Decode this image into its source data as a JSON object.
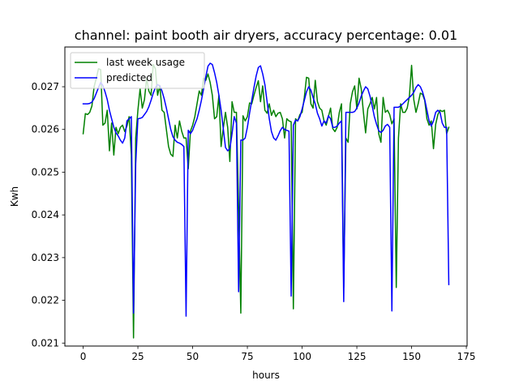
{
  "chart_data": {
    "type": "line",
    "title": "channel: paint booth air dryers, accuracy percentage: 0.01",
    "xlabel": "hours",
    "ylabel": "Kwh",
    "xlim": [
      -8.35,
      175.35
    ],
    "ylim": [
      0.02093,
      0.02793
    ],
    "xticks": [
      0,
      25,
      50,
      75,
      100,
      125,
      150,
      175
    ],
    "yticks": [
      0.021,
      0.022,
      0.023,
      0.024,
      0.025,
      0.026,
      0.027
    ],
    "ytick_labels": [
      "0.021",
      "0.022",
      "0.023",
      "0.024",
      "0.025",
      "0.026",
      "0.027"
    ],
    "grid": false,
    "legend_position": "upper left",
    "series": [
      {
        "name": "last week usage",
        "color": "#008000",
        "x": [
          0,
          1,
          2,
          3,
          4,
          5,
          6,
          7,
          8,
          9,
          10,
          11,
          12,
          13,
          14,
          15,
          16,
          17,
          18,
          19,
          20,
          21,
          22,
          23,
          24,
          25,
          26,
          27,
          28,
          29,
          30,
          31,
          32,
          33,
          34,
          35,
          36,
          37,
          38,
          39,
          40,
          41,
          42,
          43,
          44,
          45,
          46,
          47,
          48,
          49,
          50,
          51,
          52,
          53,
          54,
          55,
          56,
          57,
          58,
          59,
          60,
          61,
          62,
          63,
          64,
          65,
          66,
          67,
          68,
          69,
          70,
          71,
          72,
          73,
          74,
          75,
          76,
          77,
          78,
          79,
          80,
          81,
          82,
          83,
          84,
          85,
          86,
          87,
          88,
          89,
          90,
          91,
          92,
          93,
          94,
          95,
          96,
          97,
          98,
          99,
          100,
          101,
          102,
          103,
          104,
          105,
          106,
          107,
          108,
          109,
          110,
          111,
          112,
          113,
          114,
          115,
          116,
          117,
          118,
          119,
          120,
          121,
          122,
          123,
          124,
          125,
          126,
          127,
          128,
          129,
          130,
          131,
          132,
          133,
          134,
          135,
          136,
          137,
          138,
          139,
          140,
          141,
          142,
          143,
          144,
          145,
          146,
          147,
          148,
          149,
          150,
          151,
          152,
          153,
          154,
          155,
          156,
          157,
          158,
          159,
          160,
          161,
          162,
          163,
          164,
          165,
          166,
          167
        ],
        "y": [
          0.0259,
          0.02637,
          0.02635,
          0.0264,
          0.02655,
          0.027,
          0.0272,
          0.02742,
          0.0274,
          0.0261,
          0.02615,
          0.02645,
          0.0255,
          0.02615,
          0.0254,
          0.02605,
          0.0259,
          0.02605,
          0.0261,
          0.02595,
          0.02608,
          0.0263,
          0.0254,
          0.02112,
          0.0258,
          0.02645,
          0.02695,
          0.0265,
          0.0267,
          0.0272,
          0.0269,
          0.0268,
          0.02752,
          0.02742,
          0.0268,
          0.02703,
          0.02645,
          0.0264,
          0.026,
          0.0256,
          0.02542,
          0.02537,
          0.0261,
          0.0258,
          0.0262,
          0.02596,
          0.0258,
          0.0258,
          0.02508,
          0.02596,
          0.0261,
          0.0263,
          0.0266,
          0.0269,
          0.0268,
          0.0272,
          0.02715,
          0.0273,
          0.0271,
          0.0268,
          0.02625,
          0.0263,
          0.0268,
          0.0256,
          0.02603,
          0.0264,
          0.02605,
          0.02525,
          0.02665,
          0.0264,
          0.0264,
          0.02418,
          0.0217,
          0.02632,
          0.0262,
          0.0263,
          0.02662,
          0.0266,
          0.0268,
          0.02698,
          0.02714,
          0.02665,
          0.02702,
          0.02645,
          0.02638,
          0.0266,
          0.02633,
          0.02645,
          0.0263,
          0.02638,
          0.0264,
          0.02625,
          0.0258,
          0.02625,
          0.0262,
          0.02618,
          0.0218,
          0.02625,
          0.0262,
          0.02635,
          0.0264,
          0.02675,
          0.02722,
          0.0272,
          0.0266,
          0.0265,
          0.02715,
          0.02665,
          0.0265,
          0.02645,
          0.0262,
          0.0261,
          0.0263,
          0.0265,
          0.02602,
          0.02595,
          0.02605,
          0.0264,
          0.0266,
          0.0223,
          0.0258,
          0.0257,
          0.0266,
          0.02688,
          0.02702,
          0.02648,
          0.0272,
          0.02695,
          0.0264,
          0.02592,
          0.02648,
          0.0266,
          0.02675,
          0.02648,
          0.02675,
          0.0259,
          0.0257,
          0.02675,
          0.0264,
          0.02645,
          0.02635,
          0.02613,
          0.02625,
          0.0223,
          0.0258,
          0.0266,
          0.0264,
          0.0264,
          0.0265,
          0.02678,
          0.0275,
          0.0267,
          0.0264,
          0.0266,
          0.02685,
          0.02682,
          0.02668,
          0.02625,
          0.0261,
          0.0262,
          0.02555,
          0.02612,
          0.02635,
          0.02645,
          0.02642,
          0.02645,
          0.0259,
          0.02605
        ]
      },
      {
        "name": "predicted",
        "color": "#0000ff",
        "x": [
          0,
          1,
          2,
          3,
          4,
          5,
          6,
          7,
          8,
          9,
          10,
          11,
          12,
          13,
          14,
          15,
          16,
          17,
          18,
          19,
          20,
          21,
          22,
          23,
          24,
          25,
          26,
          27,
          28,
          29,
          30,
          31,
          32,
          33,
          34,
          35,
          36,
          37,
          38,
          39,
          40,
          41,
          42,
          43,
          44,
          45,
          46,
          47,
          48,
          49,
          50,
          51,
          52,
          53,
          54,
          55,
          56,
          57,
          58,
          59,
          60,
          61,
          62,
          63,
          64,
          65,
          66,
          67,
          68,
          69,
          70,
          71,
          72,
          73,
          74,
          75,
          76,
          77,
          78,
          79,
          80,
          81,
          82,
          83,
          84,
          85,
          86,
          87,
          88,
          89,
          90,
          91,
          92,
          93,
          94,
          95,
          96,
          97,
          98,
          99,
          100,
          101,
          102,
          103,
          104,
          105,
          106,
          107,
          108,
          109,
          110,
          111,
          112,
          113,
          114,
          115,
          116,
          117,
          118,
          119,
          120,
          121,
          122,
          123,
          124,
          125,
          126,
          127,
          128,
          129,
          130,
          131,
          132,
          133,
          134,
          135,
          136,
          137,
          138,
          139,
          140,
          141,
          142,
          143,
          144,
          145,
          146,
          147,
          148,
          149,
          150,
          151,
          152,
          153,
          154,
          155,
          156,
          157,
          158,
          159,
          160,
          161,
          162,
          163,
          164,
          165,
          166,
          167
        ],
        "y": [
          0.0266,
          0.0266,
          0.0266,
          0.02661,
          0.02664,
          0.02672,
          0.02685,
          0.02698,
          0.0271,
          0.02703,
          0.02688,
          0.0267,
          0.02645,
          0.02625,
          0.02605,
          0.02592,
          0.02585,
          0.02575,
          0.02568,
          0.0258,
          0.0262,
          0.02625,
          0.0263,
          0.0217,
          0.0252,
          0.02625,
          0.02626,
          0.02628,
          0.02635,
          0.02642,
          0.02653,
          0.02668,
          0.02685,
          0.02698,
          0.02705,
          0.02702,
          0.0269,
          0.02672,
          0.0265,
          0.02625,
          0.026,
          0.02583,
          0.02575,
          0.0257,
          0.02568,
          0.02565,
          0.0256,
          0.02163,
          0.02598,
          0.0259,
          0.02598,
          0.02612,
          0.02625,
          0.02645,
          0.02668,
          0.02695,
          0.02723,
          0.02748,
          0.02755,
          0.02752,
          0.02733,
          0.0271,
          0.0268,
          0.02645,
          0.02602,
          0.02558,
          0.0255,
          0.02555,
          0.0259,
          0.0263,
          0.02615,
          0.0222,
          0.02575,
          0.02575,
          0.0258,
          0.02605,
          0.02638,
          0.02668,
          0.02698,
          0.02725,
          0.02745,
          0.02749,
          0.0273,
          0.02705,
          0.02665,
          0.02625,
          0.02595,
          0.0258,
          0.02575,
          0.02585,
          0.02597,
          0.02605,
          0.026,
          0.02598,
          0.02596,
          0.0221,
          0.0261,
          0.02622,
          0.0262,
          0.0263,
          0.02648,
          0.02668,
          0.02688,
          0.027,
          0.02692,
          0.02675,
          0.0266,
          0.02638,
          0.02625,
          0.02608,
          0.0262,
          0.02615,
          0.02632,
          0.02625,
          0.02605,
          0.02605,
          0.02608,
          0.02615,
          0.0262,
          0.02197,
          0.0264,
          0.0264,
          0.0264,
          0.0264,
          0.02642,
          0.0265,
          0.02662,
          0.02678,
          0.0269,
          0.027,
          0.02695,
          0.02678,
          0.02655,
          0.0263,
          0.02612,
          0.02597,
          0.02593,
          0.02598,
          0.02608,
          0.02612,
          0.02605,
          0.02175,
          0.02652,
          0.02652,
          0.02652,
          0.02655,
          0.0266,
          0.02665,
          0.0267,
          0.02675,
          0.0268,
          0.02687,
          0.02698,
          0.02705,
          0.027,
          0.02688,
          0.0267,
          0.02645,
          0.0262,
          0.02608,
          0.0262,
          0.0264,
          0.02645,
          0.0264,
          0.02615,
          0.02605,
          0.02605,
          0.02237
        ]
      }
    ]
  }
}
